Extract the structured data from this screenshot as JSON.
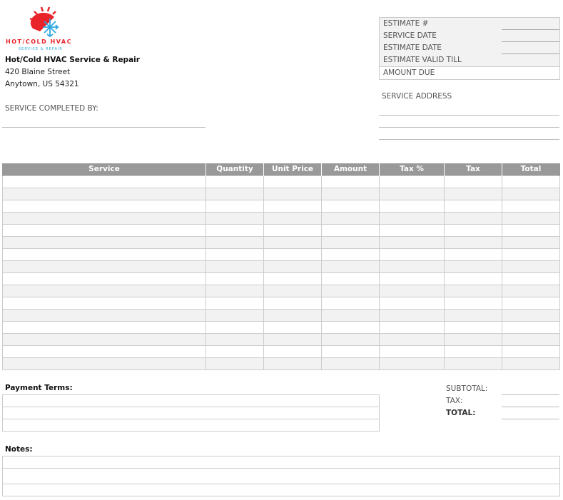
{
  "logo": {
    "text": "HOT/COLD HVAC",
    "subtext": "SERVICE & REPAIR",
    "colors": {
      "sun": "#e8232a",
      "snow": "#2aa7e0"
    }
  },
  "company": {
    "name": "Hot/Cold HVAC Service & Repair",
    "street": "420 Blaine Street",
    "city": "Anytown, US 54321"
  },
  "service_completed_by": "SERVICE COMPLETED BY:",
  "estimate": {
    "fields": [
      "ESTIMATE #",
      "SERVICE DATE",
      "ESTIMATE DATE",
      "ESTIMATE VALID TILL"
    ],
    "amount_due": "AMOUNT DUE"
  },
  "service_address": "SERVICE ADDRESS",
  "table": {
    "headers": [
      "Service",
      "Quantity",
      "Unit Price",
      "Amount",
      "Tax %",
      "Tax",
      "Total"
    ],
    "header_color": "#999999",
    "row_count": 16
  },
  "payment_terms": "Payment Terms:",
  "totals": {
    "subtotal": "SUBTOTAL:",
    "tax": "TAX:",
    "total": "TOTAL:"
  },
  "notes": "Notes:"
}
